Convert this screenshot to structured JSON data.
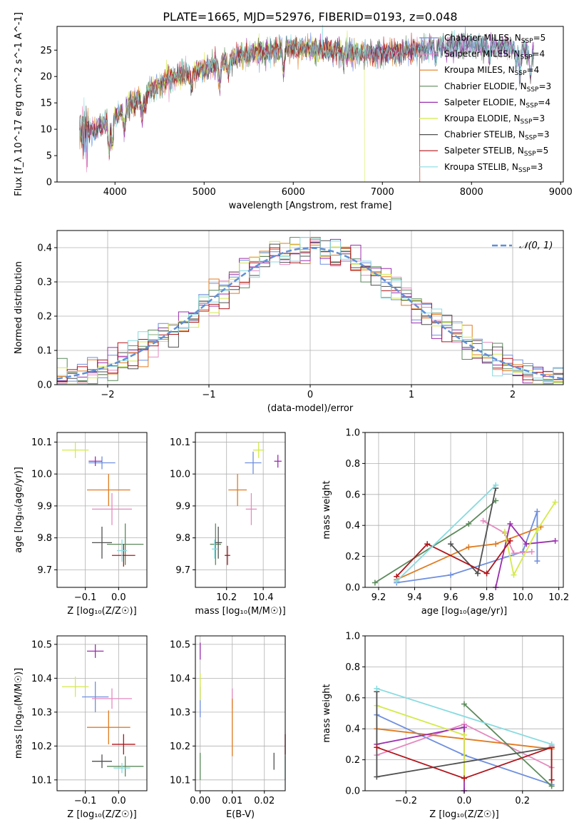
{
  "figure_title": "PLATE=1665, MJD=52976, FIBERID=0193, z=0.048",
  "colors": {
    "Chabrier MILES": "#6f8fdf",
    "Salpeter MILES": "#e58ac0",
    "Kroupa MILES": "#e07b1f",
    "Chabrier ELODIE": "#5b8a5b",
    "Salpeter ELODIE": "#9b2fae",
    "Kroupa ELODIE": "#d4ea4a",
    "Chabrier STELIB": "#505050",
    "Salpeter STELIB": "#b0141a",
    "Kroupa STELIB": "#88dbe0"
  },
  "chart_data": [
    {
      "type": "line",
      "xlabel": "wavelength [Angstrom, rest frame]",
      "ylabel": "Flux [f_λ 10^-17 erg cm^-2 s^-1 A^-1]",
      "xlim": [
        3350,
        9030
      ],
      "ylim": [
        0,
        29.5
      ],
      "xticks": [
        "4000",
        "5000",
        "6000",
        "7000",
        "8000",
        "9000"
      ],
      "yticks": [
        "0",
        "5",
        "10",
        "15",
        "20",
        "25"
      ],
      "legend_loc": "right",
      "legend": [
        {
          "name": "Chabrier MILES",
          "pre": "Chabrier MILES, N",
          "val": "=5"
        },
        {
          "name": "Salpeter MILES",
          "pre": "Salpeter MILES, N",
          "val": "=4"
        },
        {
          "name": "Kroupa MILES",
          "pre": "Kroupa MILES, N",
          "val": "=4"
        },
        {
          "name": "Chabrier ELODIE",
          "pre": "Chabrier ELODIE, N",
          "val": "=3"
        },
        {
          "name": "Salpeter ELODIE",
          "pre": "Salpeter ELODIE, N",
          "val": "=4"
        },
        {
          "name": "Kroupa ELODIE",
          "pre": "Kroupa ELODIE, N",
          "val": "=3"
        },
        {
          "name": "Chabrier STELIB",
          "pre": "Chabrier STELIB, N",
          "val": "=3"
        },
        {
          "name": "Salpeter STELIB",
          "pre": "Salpeter STELIB, N",
          "val": "=5"
        },
        {
          "name": "Kroupa STELIB",
          "pre": "Kroupa STELIB, N",
          "val": "=3"
        }
      ],
      "continuum": [
        [
          3600,
          9
        ],
        [
          3800,
          10
        ],
        [
          4000,
          12.5
        ],
        [
          4200,
          15
        ],
        [
          4400,
          17.5
        ],
        [
          4600,
          19.5
        ],
        [
          4800,
          20.5
        ],
        [
          5000,
          21.5
        ],
        [
          5200,
          22.5
        ],
        [
          5400,
          24
        ],
        [
          5600,
          24.5
        ],
        [
          5800,
          25
        ],
        [
          6000,
          25.5
        ],
        [
          6200,
          25.3
        ],
        [
          6400,
          25
        ],
        [
          6600,
          24.8
        ],
        [
          6800,
          24.5
        ],
        [
          7000,
          24.3
        ],
        [
          7200,
          24.5
        ],
        [
          7400,
          25
        ],
        [
          7600,
          25.5
        ],
        [
          7800,
          25.8
        ],
        [
          8000,
          26
        ],
        [
          8200,
          25.8
        ],
        [
          8400,
          25.5
        ],
        [
          8600,
          25
        ],
        [
          8700,
          24.5
        ]
      ],
      "series_cutoffs": [
        {
          "name": "Kroupa ELODIE",
          "range": [
            3900,
            6800
          ]
        },
        {
          "name": "Salpeter STELIB",
          "range": [
            3600,
            7420
          ]
        },
        {
          "name": "Kroupa MILES",
          "range": [
            3600,
            7420
          ]
        }
      ]
    },
    {
      "type": "histogram",
      "xlabel": "(data-model)/error",
      "ylabel": "Normed distribution",
      "xlim": [
        -2.5,
        2.5
      ],
      "ylim": [
        0,
        0.45
      ],
      "xticks": [
        "−2",
        "−1",
        "0",
        "1",
        "2"
      ],
      "yticks": [
        "0.0",
        "0.1",
        "0.2",
        "0.3",
        "0.4"
      ],
      "bin_width": 0.1,
      "gaussian_label": "𝒩(0, 1)",
      "legend_loc": "upper right"
    },
    {
      "type": "scatter",
      "xlabel": "Z [log₁₀(Z/Z☉)]",
      "ylabel": "age [log₁₀(age/yr)]",
      "xlim": [
        -0.185,
        0.085
      ],
      "ylim": [
        9.645,
        10.13
      ],
      "xticks": [
        [
          "−0.1",
          -0.1
        ],
        [
          "0.0",
          0.0
        ]
      ],
      "yticks": [
        [
          "9.7",
          9.7
        ],
        [
          "9.8",
          9.8
        ],
        [
          "9.9",
          9.9
        ],
        [
          "10.0",
          10.0
        ],
        [
          "10.1",
          10.1
        ]
      ],
      "points": [
        {
          "name": "Chabrier MILES",
          "x": -0.05,
          "y": 10.035,
          "xe": 0.04,
          "ye": 0.02
        },
        {
          "name": "Salpeter MILES",
          "x": -0.02,
          "y": 9.89,
          "xe": 0.06,
          "ye": 0.05
        },
        {
          "name": "Kroupa MILES",
          "x": -0.03,
          "y": 9.95,
          "xe": 0.065,
          "ye": 0.05
        },
        {
          "name": "Chabrier ELODIE",
          "x": 0.02,
          "y": 9.78,
          "xe": 0.055,
          "ye": 0.065
        },
        {
          "name": "Salpeter ELODIE",
          "x": -0.07,
          "y": 10.04,
          "xe": 0.02,
          "ye": 0.015
        },
        {
          "name": "Kroupa ELODIE",
          "x": -0.13,
          "y": 10.075,
          "xe": 0.04,
          "ye": 0.025
        },
        {
          "name": "Chabrier STELIB",
          "x": -0.05,
          "y": 9.785,
          "xe": 0.03,
          "ye": 0.05
        },
        {
          "name": "Salpeter STELIB",
          "x": 0.015,
          "y": 9.745,
          "xe": 0.035,
          "ye": 0.035
        },
        {
          "name": "Kroupa STELIB",
          "x": 0.01,
          "y": 9.76,
          "xe": 0.015,
          "ye": 0.035
        }
      ]
    },
    {
      "type": "scatter",
      "xlabel": "mass [log₁₀(M/M☉)]",
      "ylabel": "",
      "xlim": [
        10.03,
        10.52
      ],
      "ylim": [
        9.645,
        10.13
      ],
      "xticks": [
        [
          "10.2",
          10.2
        ],
        [
          "10.4",
          10.4
        ]
      ],
      "yticks": [
        [
          "9.7",
          9.7
        ],
        [
          "9.8",
          9.8
        ],
        [
          "9.9",
          9.9
        ],
        [
          "10.0",
          10.0
        ],
        [
          "10.1",
          10.1
        ]
      ],
      "points": [
        {
          "name": "Chabrier MILES",
          "x": 10.345,
          "y": 10.035,
          "xe": 0.045,
          "ye": 0.035
        },
        {
          "name": "Salpeter MILES",
          "x": 10.335,
          "y": 9.89,
          "xe": 0.03,
          "ye": 0.05
        },
        {
          "name": "Kroupa MILES",
          "x": 10.26,
          "y": 9.95,
          "xe": 0.05,
          "ye": 0.05
        },
        {
          "name": "Chabrier ELODIE",
          "x": 10.14,
          "y": 9.78,
          "xe": 0.03,
          "ye": 0.065
        },
        {
          "name": "Salpeter ELODIE",
          "x": 10.48,
          "y": 10.04,
          "xe": 0.02,
          "ye": 0.02
        },
        {
          "name": "Kroupa ELODIE",
          "x": 10.375,
          "y": 10.075,
          "xe": 0.03,
          "ye": 0.025
        },
        {
          "name": "Chabrier STELIB",
          "x": 10.155,
          "y": 9.785,
          "xe": 0.02,
          "ye": 0.05
        },
        {
          "name": "Salpeter STELIB",
          "x": 10.205,
          "y": 9.745,
          "xe": 0.015,
          "ye": 0.03
        },
        {
          "name": "Kroupa STELIB",
          "x": 10.135,
          "y": 9.765,
          "xe": 0.015,
          "ye": 0.03
        }
      ]
    },
    {
      "type": "line",
      "xlabel": "age [log₁₀(age/yr)]",
      "ylabel": "mass weight",
      "xlim": [
        9.125,
        10.225
      ],
      "ylim": [
        0,
        1.0
      ],
      "xticks": [
        [
          "9.2",
          9.2
        ],
        [
          "9.4",
          9.4
        ],
        [
          "9.6",
          9.6
        ],
        [
          "9.8",
          9.8
        ],
        [
          "10.0",
          10.0
        ],
        [
          "10.2",
          10.2
        ]
      ],
      "yticks": [
        [
          "0.0",
          0
        ],
        [
          "0.2",
          0.2
        ],
        [
          "0.4",
          0.4
        ],
        [
          "0.6",
          0.6
        ],
        [
          "0.8",
          0.8
        ],
        [
          "1.0",
          1.0
        ]
      ],
      "series": [
        {
          "name": "Chabrier MILES",
          "x": [
            9.3,
            9.6,
            10.0,
            10.08,
            10.08
          ],
          "y": [
            0.03,
            0.08,
            0.23,
            0.49,
            0.17
          ]
        },
        {
          "name": "Salpeter MILES",
          "x": [
            9.78,
            9.9,
            9.95,
            10.05
          ],
          "y": [
            0.43,
            0.35,
            0.22,
            0.23
          ]
        },
        {
          "name": "Kroupa MILES",
          "x": [
            9.3,
            9.7,
            9.85,
            10.1
          ],
          "y": [
            0.05,
            0.26,
            0.28,
            0.39
          ]
        },
        {
          "name": "Chabrier ELODIE",
          "x": [
            9.18,
            9.7,
            9.85
          ],
          "y": [
            0.03,
            0.41,
            0.56
          ]
        },
        {
          "name": "Salpeter ELODIE",
          "x": [
            9.85,
            9.93,
            10.02,
            10.18
          ],
          "y": [
            0.0,
            0.41,
            0.28,
            0.3
          ]
        },
        {
          "name": "Kroupa ELODIE",
          "x": [
            9.9,
            9.95,
            10.08,
            10.18
          ],
          "y": [
            0.36,
            0.08,
            0.37,
            0.55
          ]
        },
        {
          "name": "Chabrier STELIB",
          "x": [
            9.6,
            9.75,
            9.85
          ],
          "y": [
            0.28,
            0.09,
            0.64
          ]
        },
        {
          "name": "Salpeter STELIB",
          "x": [
            9.3,
            9.47,
            9.8,
            9.93
          ],
          "y": [
            0.07,
            0.28,
            0.09,
            0.3
          ]
        },
        {
          "name": "Kroupa STELIB",
          "x": [
            9.3,
            9.85
          ],
          "y": [
            0.04,
            0.66
          ]
        }
      ]
    },
    {
      "type": "scatter",
      "xlabel": "Z [log₁₀(Z/Z☉)]",
      "ylabel": "mass [log₁₀(M/M☉)]",
      "xlim": [
        -0.185,
        0.085
      ],
      "ylim": [
        10.068,
        10.525
      ],
      "xticks": [
        [
          "−0.1",
          -0.1
        ],
        [
          "0.0",
          0.0
        ]
      ],
      "yticks": [
        [
          "10.1",
          10.1
        ],
        [
          "10.2",
          10.2
        ],
        [
          "10.3",
          10.3
        ],
        [
          "10.4",
          10.4
        ],
        [
          "10.5",
          10.5
        ]
      ],
      "points": [
        {
          "name": "Chabrier MILES",
          "x": -0.07,
          "y": 10.345,
          "xe": 0.04,
          "ye": 0.045
        },
        {
          "name": "Salpeter MILES",
          "x": -0.02,
          "y": 10.34,
          "xe": 0.06,
          "ye": 0.03
        },
        {
          "name": "Kroupa MILES",
          "x": -0.03,
          "y": 10.255,
          "xe": 0.065,
          "ye": 0.05
        },
        {
          "name": "Chabrier ELODIE",
          "x": 0.02,
          "y": 10.14,
          "xe": 0.055,
          "ye": 0.03
        },
        {
          "name": "Salpeter ELODIE",
          "x": -0.07,
          "y": 10.48,
          "xe": 0.025,
          "ye": 0.02
        },
        {
          "name": "Kroupa ELODIE",
          "x": -0.13,
          "y": 10.375,
          "xe": 0.04,
          "ye": 0.03
        },
        {
          "name": "Chabrier STELIB",
          "x": -0.05,
          "y": 10.155,
          "xe": 0.03,
          "ye": 0.02
        },
        {
          "name": "Salpeter STELIB",
          "x": 0.015,
          "y": 10.205,
          "xe": 0.035,
          "ye": 0.03
        },
        {
          "name": "Kroupa STELIB",
          "x": 0.01,
          "y": 10.135,
          "xe": 0.025,
          "ye": 0.015
        }
      ]
    },
    {
      "type": "scatter",
      "xlabel": "E(B-V)",
      "ylabel": "",
      "xlim": [
        -0.0015,
        0.0265
      ],
      "ylim": [
        10.068,
        10.525
      ],
      "xticks": [
        [
          "0.00",
          0.0
        ],
        [
          "0.01",
          0.01
        ],
        [
          "0.02",
          0.02
        ]
      ],
      "yticks": [
        [
          "10.1",
          10.1
        ],
        [
          "10.2",
          10.2
        ],
        [
          "10.3",
          10.3
        ],
        [
          "10.4",
          10.4
        ],
        [
          "10.5",
          10.5
        ]
      ],
      "points": [
        {
          "name": "Chabrier MILES",
          "x": 0.0,
          "y": 10.33,
          "xe": 0,
          "ye": 0.045
        },
        {
          "name": "Salpeter MILES",
          "x": 0.01,
          "y": 10.34,
          "xe": 0,
          "ye": 0.03
        },
        {
          "name": "Kroupa MILES",
          "x": 0.01,
          "y": 10.255,
          "xe": 0,
          "ye": 0.085
        },
        {
          "name": "Chabrier ELODIE",
          "x": 0.0,
          "y": 10.14,
          "xe": 0,
          "ye": 0.04
        },
        {
          "name": "Salpeter ELODIE",
          "x": 0.0,
          "y": 10.48,
          "xe": 0,
          "ye": 0.025
        },
        {
          "name": "Kroupa ELODIE",
          "x": 0.0,
          "y": 10.375,
          "xe": 0,
          "ye": 0.04
        },
        {
          "name": "Chabrier STELIB",
          "x": 0.023,
          "y": 10.155,
          "xe": 0,
          "ye": 0.025
        },
        {
          "name": "Salpeter STELIB",
          "x": 0.0265,
          "y": 10.205,
          "xe": 0,
          "ye": 0.03
        },
        {
          "name": "Kroupa STELIB",
          "x": 0.0265,
          "y": 10.135,
          "xe": 0,
          "ye": 0.035
        }
      ]
    },
    {
      "type": "line",
      "xlabel": "Z [log₁₀(Z/Z☉)]",
      "ylabel": "mass weight",
      "xlim": [
        -0.34,
        0.34
      ],
      "ylim": [
        0,
        1.0
      ],
      "xticks": [
        [
          "−0.2",
          -0.2
        ],
        [
          "0.0",
          0.0
        ],
        [
          "0.2",
          0.2
        ]
      ],
      "yticks": [
        [
          "0.0",
          0
        ],
        [
          "0.2",
          0.2
        ],
        [
          "0.4",
          0.4
        ],
        [
          "0.6",
          0.6
        ],
        [
          "0.8",
          0.8
        ],
        [
          "1.0",
          1.0
        ]
      ],
      "series": [
        {
          "name": "Chabrier MILES",
          "x": [
            -0.3,
            0.0,
            0.3
          ],
          "y": [
            0.49,
            0.23,
            0.04
          ]
        },
        {
          "name": "Salpeter MILES",
          "x": [
            -0.3,
            0.0,
            0.3,
            0.3
          ],
          "y": [
            0.23,
            0.43,
            0.15,
            0.29
          ]
        },
        {
          "name": "Kroupa MILES",
          "x": [
            -0.3,
            0.3
          ],
          "y": [
            0.4,
            0.27
          ]
        },
        {
          "name": "Chabrier ELODIE",
          "x": [
            0.0,
            0.3,
            0.3
          ],
          "y": [
            0.56,
            0.03,
            0.28
          ]
        },
        {
          "name": "Salpeter ELODIE",
          "x": [
            -0.3,
            0.0,
            0.0
          ],
          "y": [
            0.3,
            0.41,
            0.0
          ]
        },
        {
          "name": "Kroupa ELODIE",
          "x": [
            -0.3,
            0.0,
            0.0
          ],
          "y": [
            0.55,
            0.36,
            0.08
          ]
        },
        {
          "name": "Chabrier STELIB",
          "x": [
            -0.3,
            -0.3,
            0.3
          ],
          "y": [
            0.64,
            0.09,
            0.28
          ]
        },
        {
          "name": "Salpeter STELIB",
          "x": [
            -0.3,
            0.0,
            0.3,
            0.3
          ],
          "y": [
            0.28,
            0.08,
            0.28,
            0.07
          ]
        },
        {
          "name": "Kroupa STELIB",
          "x": [
            -0.3,
            0.3
          ],
          "y": [
            0.66,
            0.3
          ]
        }
      ]
    }
  ]
}
